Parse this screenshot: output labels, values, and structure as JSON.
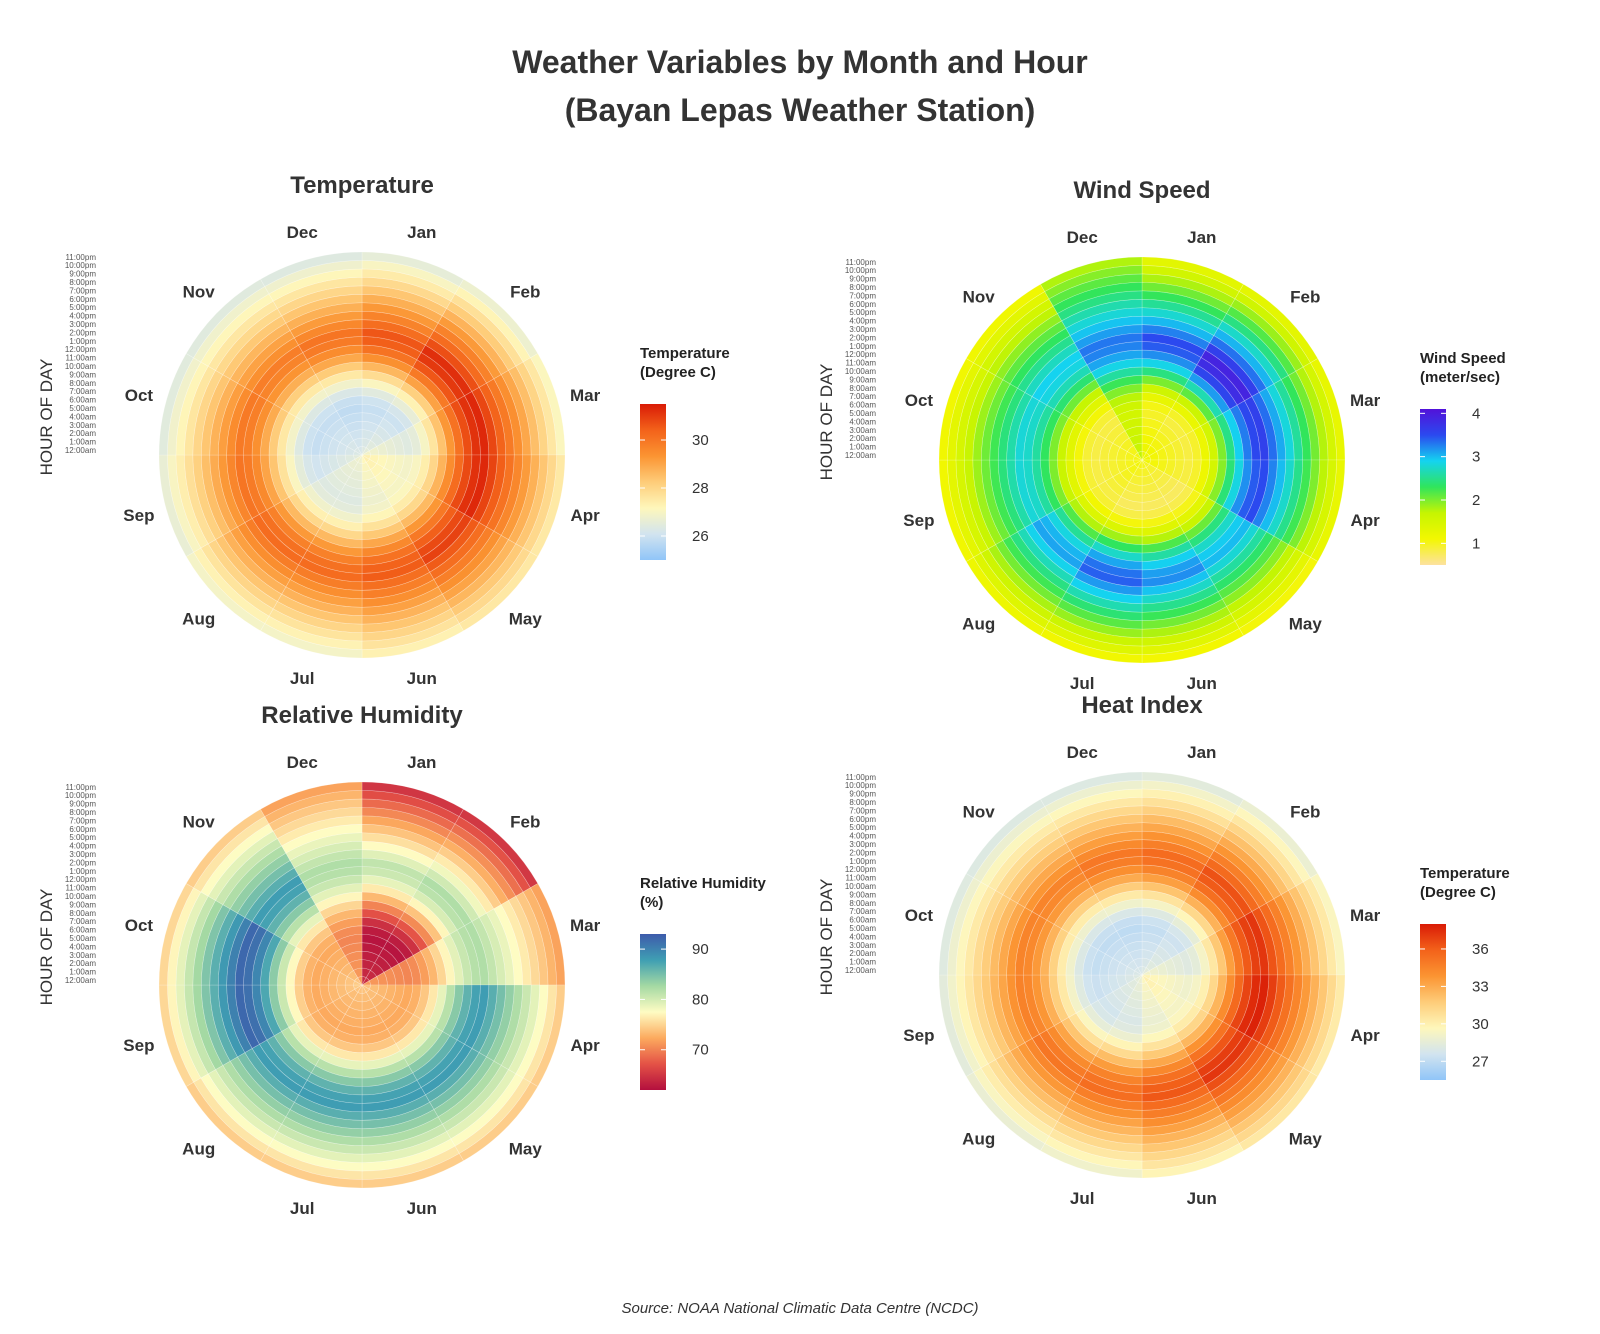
{
  "title": {
    "line1": "Weather Variables by Month and Hour",
    "line2": "(Bayan Lepas Weather Station)"
  },
  "source": "Source: NOAA National Climatic Data Centre (NCDC)",
  "chart_data": [
    {
      "type": "heatmap",
      "projection": "polar",
      "title": "Temperature",
      "ylabel": "HOUR OF DAY",
      "months": [
        "Jan",
        "Feb",
        "Mar",
        "Apr",
        "May",
        "Jun",
        "Jul",
        "Aug",
        "Sep",
        "Oct",
        "Nov",
        "Dec"
      ],
      "hours": [
        "12:00am",
        "1:00am",
        "2:00am",
        "3:00am",
        "4:00am",
        "5:00am",
        "6:00am",
        "7:00am",
        "8:00am",
        "9:00am",
        "10:00am",
        "11:00am",
        "12:00pm",
        "1:00pm",
        "2:00pm",
        "3:00pm",
        "4:00pm",
        "5:00pm",
        "6:00pm",
        "7:00pm",
        "8:00pm",
        "9:00pm",
        "10:00pm",
        "11:00pm"
      ],
      "legend": {
        "title_line1": "Temperature",
        "title_line2": "(Degree C)",
        "ticks": [
          30,
          28,
          26
        ],
        "range": [
          25.0,
          31.5
        ]
      },
      "colors": [
        "#90c5f8",
        "#d2e4ef",
        "#fef7bb",
        "#fecc79",
        "#fb9432",
        "#f3621a",
        "#d91b06"
      ],
      "low": [
        25.8,
        25.9,
        26.3,
        26.8,
        26.9,
        26.7,
        26.3,
        26.3,
        26.0,
        25.8,
        25.8,
        25.7
      ],
      "high": [
        30.6,
        31.2,
        31.3,
        31.3,
        30.9,
        30.5,
        30.2,
        30.2,
        30.0,
        29.9,
        29.8,
        30.0
      ]
    },
    {
      "type": "heatmap",
      "projection": "polar",
      "title": "Wind Speed",
      "ylabel": "HOUR OF DAY",
      "months": [
        "Jan",
        "Feb",
        "Mar",
        "Apr",
        "May",
        "Jun",
        "Jul",
        "Aug",
        "Sep",
        "Oct",
        "Nov",
        "Dec"
      ],
      "hours": [
        "12:00am",
        "1:00am",
        "2:00am",
        "3:00am",
        "4:00am",
        "5:00am",
        "6:00am",
        "7:00am",
        "8:00am",
        "9:00am",
        "10:00am",
        "11:00am",
        "12:00pm",
        "1:00pm",
        "2:00pm",
        "3:00pm",
        "4:00pm",
        "5:00pm",
        "6:00pm",
        "7:00pm",
        "8:00pm",
        "9:00pm",
        "10:00pm",
        "11:00pm"
      ],
      "legend": {
        "title_line1": "Wind Speed",
        "title_line2": "(meter/sec)",
        "ticks": [
          4,
          3,
          2,
          1
        ],
        "range": [
          0.5,
          4.1
        ]
      },
      "colors": [
        "#fde2a0",
        "#f3f701",
        "#c6f501",
        "#30e55c",
        "#14d3f0",
        "#2b49ef",
        "#5212d9"
      ],
      "low": [
        0.9,
        0.8,
        0.8,
        0.8,
        0.7,
        0.7,
        0.7,
        0.8,
        0.8,
        0.8,
        0.8,
        1.5
      ],
      "high": [
        3.5,
        3.9,
        3.6,
        3.5,
        3.0,
        3.2,
        3.4,
        3.1,
        2.8,
        2.8,
        2.9,
        3.3
      ]
    },
    {
      "type": "heatmap",
      "projection": "polar",
      "title": "Relative Humidity",
      "ylabel": "HOUR OF DAY",
      "months": [
        "Jan",
        "Feb",
        "Mar",
        "Apr",
        "May",
        "Jun",
        "Jul",
        "Aug",
        "Sep",
        "Oct",
        "Nov",
        "Dec"
      ],
      "hours": [
        "12:00am",
        "1:00am",
        "2:00am",
        "3:00am",
        "4:00am",
        "5:00am",
        "6:00am",
        "7:00am",
        "8:00am",
        "9:00am",
        "10:00am",
        "11:00am",
        "12:00pm",
        "1:00pm",
        "2:00pm",
        "3:00pm",
        "4:00pm",
        "5:00pm",
        "6:00pm",
        "7:00pm",
        "8:00pm",
        "9:00pm",
        "10:00pm",
        "11:00pm"
      ],
      "legend": {
        "title_line1": "Relative Humidity",
        "title_line2": "(%)",
        "ticks": [
          90,
          80,
          70
        ],
        "range": [
          62,
          93
        ]
      },
      "colors": [
        "#b30f3e",
        "#e45246",
        "#fcaa5e",
        "#fefcc3",
        "#a4d9a3",
        "#3f9fb3",
        "#3d5bab"
      ],
      "low": [
        62,
        62,
        70,
        72,
        72,
        72,
        72,
        72,
        72,
        72,
        72,
        70
      ],
      "high": [
        81,
        82,
        82,
        88,
        88,
        88,
        88,
        88,
        92,
        92,
        88,
        82
      ]
    },
    {
      "type": "heatmap",
      "projection": "polar",
      "title": "Heat Index",
      "ylabel": "HOUR OF DAY",
      "months": [
        "Jan",
        "Feb",
        "Mar",
        "Apr",
        "May",
        "Jun",
        "Jul",
        "Aug",
        "Sep",
        "Oct",
        "Nov",
        "Dec"
      ],
      "hours": [
        "12:00am",
        "1:00am",
        "2:00am",
        "3:00am",
        "4:00am",
        "5:00am",
        "6:00am",
        "7:00am",
        "8:00am",
        "9:00am",
        "10:00am",
        "11:00am",
        "12:00pm",
        "1:00pm",
        "2:00pm",
        "3:00pm",
        "4:00pm",
        "5:00pm",
        "6:00pm",
        "7:00pm",
        "8:00pm",
        "9:00pm",
        "10:00pm",
        "11:00pm"
      ],
      "legend": {
        "title_line1": "Temperature",
        "title_line2": "(Degree C)",
        "ticks": [
          36,
          33,
          30,
          27
        ],
        "range": [
          25.5,
          38.0
        ]
      },
      "colors": [
        "#90c5f8",
        "#d2e4ef",
        "#fef7bb",
        "#fecc79",
        "#fb9432",
        "#f3621a",
        "#d91b06"
      ],
      "low": [
        27.0,
        27.3,
        28.0,
        28.8,
        29.1,
        28.6,
        27.8,
        27.5,
        27.2,
        27.0,
        26.9,
        26.8
      ],
      "high": [
        35.5,
        36.4,
        37.2,
        37.8,
        37.2,
        36.2,
        35.4,
        35.1,
        34.6,
        34.5,
        34.5,
        35.0
      ]
    }
  ]
}
